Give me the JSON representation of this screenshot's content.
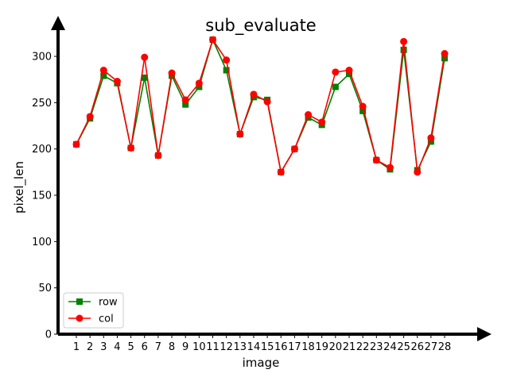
{
  "chart_data": {
    "type": "line",
    "title": "sub_evaluate",
    "xlabel": "image",
    "ylabel": "pixel_len",
    "categories": [
      "1",
      "2",
      "3",
      "4",
      "5",
      "6",
      "7",
      "8",
      "9",
      "10",
      "11",
      "12",
      "13",
      "14",
      "15",
      "16",
      "17",
      "18",
      "19",
      "20",
      "21",
      "22",
      "23",
      "24",
      "25",
      "26",
      "27",
      "28"
    ],
    "ylim": [
      0,
      330
    ],
    "yticks": [
      0,
      50,
      100,
      150,
      200,
      250,
      300
    ],
    "grid": false,
    "legend_position": "lower-left",
    "series": [
      {
        "name": "row",
        "color": "#008000",
        "marker": "square",
        "values": [
          205,
          233,
          279,
          271,
          201,
          277,
          193,
          279,
          248,
          267,
          318,
          285,
          216,
          256,
          253,
          175,
          200,
          234,
          226,
          267,
          281,
          241,
          188,
          178,
          307,
          177,
          208,
          298
        ]
      },
      {
        "name": "col",
        "color": "#ff0000",
        "marker": "circle",
        "values": [
          205,
          235,
          285,
          273,
          201,
          299,
          193,
          282,
          253,
          271,
          318,
          296,
          216,
          259,
          251,
          175,
          200,
          237,
          229,
          283,
          285,
          246,
          188,
          180,
          316,
          175,
          212,
          303
        ]
      }
    ]
  }
}
